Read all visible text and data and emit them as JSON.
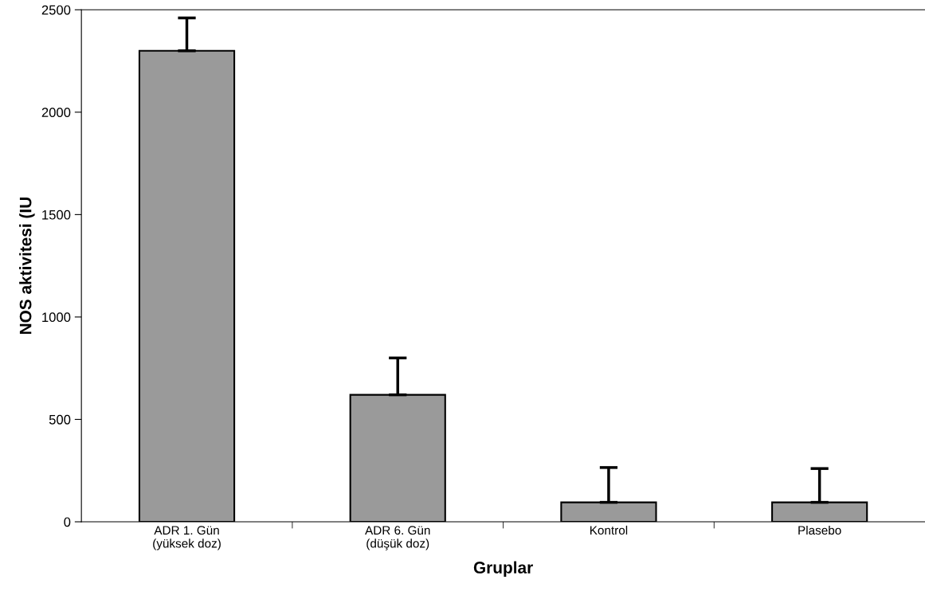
{
  "chart_data": {
    "type": "bar",
    "categories": [
      "ADR 1. Gün\n(yüksek doz)",
      "ADR 6. Gün\n(düşük doz)",
      "Kontrol",
      "Plasebo"
    ],
    "values": [
      2300,
      620,
      95,
      95
    ],
    "errors": [
      [
        2300,
        2460
      ],
      [
        620,
        800
      ],
      [
        95,
        265
      ],
      [
        95,
        260
      ]
    ],
    "color": "#9a9a9a",
    "xlabel": "Gruplar",
    "ylabel": "NOS aktivitesi (IU",
    "ylim": [
      0,
      2500
    ],
    "yticks": [
      0,
      500,
      1000,
      1500,
      2000,
      2500
    ],
    "grid": false
  }
}
